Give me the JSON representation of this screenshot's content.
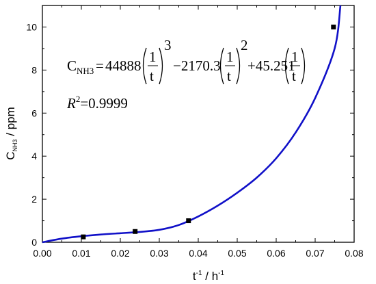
{
  "chart_data": {
    "type": "line",
    "xlabel": {
      "main": "t",
      "sup1": "-1",
      "sep": " / h",
      "sup2": "-1"
    },
    "ylabel": {
      "main": "C",
      "sub": "NH3",
      "rest": " / ppm"
    },
    "xlim": [
      0,
      0.08
    ],
    "ylim": [
      0,
      11
    ],
    "x_ticks": [
      0.0,
      0.01,
      0.02,
      0.03,
      0.04,
      0.05,
      0.06,
      0.07,
      0.08
    ],
    "x_tick_labels": [
      "0.00",
      "0.01",
      "0.02",
      "0.03",
      "0.04",
      "0.05",
      "0.06",
      "0.07",
      "0.08"
    ],
    "y_ticks": [
      0,
      2,
      4,
      6,
      8,
      10
    ],
    "y_tick_labels": [
      "0",
      "2",
      "4",
      "6",
      "8",
      "10"
    ],
    "grid": false,
    "legend": "none",
    "series": [
      {
        "kind": "scatter",
        "marker": "square",
        "color": "#000000",
        "x": [
          0.0105,
          0.0238,
          0.0375,
          0.0747
        ],
        "y": [
          0.25,
          0.5,
          1.0,
          10.0
        ]
      },
      {
        "kind": "fit-line",
        "color": "#1010c8",
        "x": [
          0.0,
          0.005,
          0.01,
          0.015,
          0.02,
          0.025,
          0.03,
          0.035,
          0.04,
          0.045,
          0.05,
          0.055,
          0.06,
          0.065,
          0.07,
          0.075,
          0.0765
        ],
        "y": [
          0.0,
          0.17,
          0.28,
          0.36,
          0.42,
          0.48,
          0.58,
          0.8,
          1.2,
          1.7,
          2.3,
          3.0,
          3.9,
          5.1,
          6.7,
          9.0,
          11.0
        ]
      }
    ],
    "annotations": {
      "equation": {
        "lhs_main": "C",
        "lhs_sub": "NH3",
        "eq": "=",
        "c1": "44888",
        "c2": "−2170.3",
        "c3": "+45.251",
        "num": "1",
        "den": "t",
        "exp1": "3",
        "exp2": "2"
      },
      "r2": {
        "main": "R",
        "sup": "2",
        "value": "=0.9999"
      }
    }
  }
}
